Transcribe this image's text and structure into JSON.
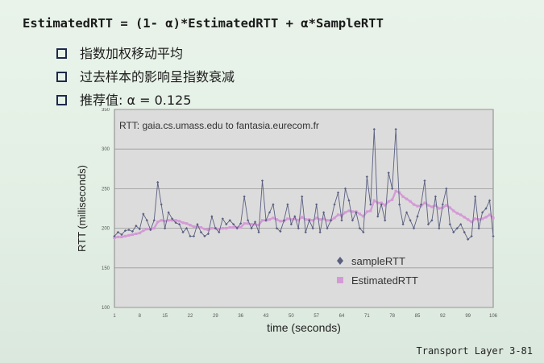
{
  "slide": {
    "formula": "EstimatedRTT = (1- α)*EstimatedRTT + α*SampleRTT",
    "bullets": [
      "指数加权移动平均",
      "过去样本的影响呈指数衰减",
      "推荐值: α = 0.125"
    ],
    "footer": "Transport Layer  3-81"
  },
  "colors": {
    "sample": "#5a5f80",
    "estimated": "#d49ad6",
    "plot_bg": "#dcdcdc",
    "grid": "#9a9a9a"
  },
  "chart_data": {
    "type": "line",
    "title": "RTT: gaia.cs.umass.edu to fantasia.eurecom.fr",
    "xlabel": "time (seconds)",
    "ylabel": "RTT (milliseconds)",
    "ylim": [
      100,
      350
    ],
    "yticks": [
      100,
      150,
      200,
      250,
      300,
      350
    ],
    "xticks": [
      1,
      8,
      15,
      22,
      29,
      36,
      43,
      50,
      57,
      64,
      71,
      78,
      85,
      92,
      99,
      106
    ],
    "xlim": [
      1,
      106
    ],
    "grid": true,
    "legend_position": "bottom-right",
    "x": [
      1,
      2,
      3,
      4,
      5,
      6,
      7,
      8,
      9,
      10,
      11,
      12,
      13,
      14,
      15,
      16,
      17,
      18,
      19,
      20,
      21,
      22,
      23,
      24,
      25,
      26,
      27,
      28,
      29,
      30,
      31,
      32,
      33,
      34,
      35,
      36,
      37,
      38,
      39,
      40,
      41,
      42,
      43,
      44,
      45,
      46,
      47,
      48,
      49,
      50,
      51,
      52,
      53,
      54,
      55,
      56,
      57,
      58,
      59,
      60,
      61,
      62,
      63,
      64,
      65,
      66,
      67,
      68,
      69,
      70,
      71,
      72,
      73,
      74,
      75,
      76,
      77,
      78,
      79,
      80,
      81,
      82,
      83,
      84,
      85,
      86,
      87,
      88,
      89,
      90,
      91,
      92,
      93,
      94,
      95,
      96,
      97,
      98,
      99,
      100,
      101,
      102,
      103,
      104,
      105,
      106
    ],
    "series": [
      {
        "name": "sampleRTT",
        "values": [
          190,
          195,
          192,
          197,
          198,
          196,
          203,
          199,
          218,
          210,
          198,
          210,
          258,
          230,
          200,
          220,
          212,
          207,
          205,
          195,
          200,
          190,
          190,
          205,
          195,
          190,
          193,
          215,
          200,
          195,
          212,
          205,
          210,
          205,
          200,
          206,
          240,
          210,
          200,
          208,
          195,
          260,
          210,
          220,
          230,
          200,
          196,
          210,
          230,
          205,
          215,
          200,
          240,
          195,
          210,
          200,
          230,
          195,
          220,
          200,
          210,
          230,
          245,
          210,
          250,
          235,
          210,
          220,
          200,
          195,
          265,
          230,
          325,
          215,
          230,
          210,
          270,
          250,
          325,
          230,
          205,
          220,
          210,
          200,
          215,
          230,
          260,
          205,
          210,
          240,
          200,
          230,
          250,
          205,
          195,
          200,
          205,
          195,
          186,
          190,
          240,
          200,
          220,
          225,
          235,
          190
        ]
      },
      {
        "name": "EstimatedRTT",
        "values": [
          188,
          189,
          189,
          190,
          191,
          192,
          193,
          194,
          197,
          199,
          199,
          200,
          208,
          210,
          209,
          210,
          210,
          210,
          209,
          207,
          206,
          204,
          202,
          202,
          201,
          199,
          198,
          200,
          200,
          199,
          200,
          200,
          201,
          201,
          201,
          201,
          206,
          206,
          205,
          205,
          204,
          210,
          210,
          211,
          213,
          211,
          209,
          209,
          212,
          211,
          212,
          210,
          214,
          211,
          211,
          210,
          213,
          211,
          212,
          210,
          210,
          213,
          217,
          216,
          220,
          222,
          221,
          221,
          218,
          215,
          221,
          222,
          235,
          232,
          232,
          229,
          234,
          236,
          247,
          245,
          240,
          237,
          234,
          230,
          228,
          228,
          232,
          229,
          227,
          229,
          225,
          226,
          229,
          226,
          222,
          219,
          217,
          214,
          211,
          208,
          212,
          211,
          212,
          214,
          217,
          213
        ]
      }
    ]
  }
}
